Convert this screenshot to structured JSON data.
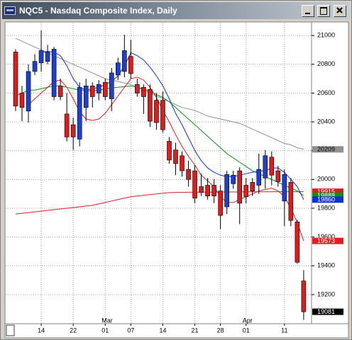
{
  "chart_data": {
    "type": "candlestick",
    "title": "NQC5 - Nasdaq Composite Index, Daily",
    "categories": [
      null,
      null,
      null,
      null,
      "14",
      null,
      null,
      null,
      null,
      "22",
      null,
      null,
      null,
      null,
      "01",
      null,
      null,
      null,
      "07",
      null,
      null,
      null,
      null,
      "14",
      null,
      null,
      null,
      null,
      "21",
      null,
      null,
      null,
      "28",
      null,
      null,
      null,
      "01",
      null,
      null,
      null,
      null,
      null,
      "11",
      null,
      null,
      null
    ],
    "months": [
      null,
      null,
      null,
      null,
      null,
      null,
      null,
      null,
      null,
      null,
      null,
      null,
      null,
      null,
      "Mar",
      null,
      null,
      null,
      null,
      null,
      null,
      null,
      null,
      null,
      null,
      null,
      null,
      null,
      null,
      null,
      null,
      null,
      null,
      null,
      null,
      null,
      "Apr",
      null,
      null,
      null,
      null,
      null,
      null,
      null,
      null,
      null
    ],
    "ylim": [
      18998,
      21094
    ],
    "yticks": [
      19200,
      19400,
      19600,
      19800,
      20000,
      20200,
      20400,
      20600,
      20800,
      21000
    ],
    "grid": true,
    "up_color": "#2040c8",
    "down_color": "#d42020",
    "open": [
      20885,
      20600,
      20475,
      20750,
      20810,
      20820,
      20575,
      20650,
      20455,
      20380,
      20280,
      20500,
      20650,
      20600,
      20675,
      20560,
      20725,
      20750,
      20855,
      20660,
      20640,
      20625,
      20550,
      20550,
      20265,
      20205,
      20165,
      20070,
      20060,
      19950,
      19960,
      19960,
      19920,
      19810,
      19970,
      20060,
      19960,
      19980,
      19960,
      20010,
      20155,
      20060,
      19850,
      19980,
      19705,
      19295
    ],
    "high": [
      20905,
      20650,
      20800,
      20870,
      21035,
      20935,
      20920,
      20700,
      20600,
      20430,
      20675,
      20700,
      20675,
      20690,
      20700,
      20775,
      20845,
      21005,
      20970,
      20700,
      20660,
      20660,
      20600,
      20610,
      20295,
      20255,
      20195,
      20130,
      20100,
      20040,
      20010,
      20000,
      19960,
      20060,
      20060,
      20085,
      20010,
      20010,
      20180,
      20205,
      20195,
      20095,
      20070,
      20010,
      19720,
      19370
    ],
    "low": [
      20475,
      20405,
      20395,
      20725,
      20750,
      20800,
      20550,
      20550,
      20265,
      20205,
      20230,
      20405,
      20500,
      20550,
      20550,
      20475,
      20690,
      20710,
      20700,
      20575,
      20455,
      20365,
      20345,
      20325,
      20110,
      20030,
      20020,
      19950,
      19835,
      19885,
      19860,
      19835,
      19655,
      19760,
      19935,
      19690,
      19835,
      19885,
      19900,
      19935,
      19960,
      19950,
      19675,
      19675,
      19415,
      19025
    ],
    "close": [
      20510,
      20500,
      20750,
      20820,
      20895,
      20885,
      20905,
      20575,
      20295,
      20295,
      20640,
      20650,
      20575,
      20660,
      20575,
      20740,
      20810,
      20895,
      20735,
      20600,
      20575,
      20405,
      20395,
      20345,
      20135,
      20110,
      20060,
      20000,
      19870,
      19910,
      19885,
      19885,
      19750,
      20035,
      20030,
      19835,
      19880,
      19920,
      20070,
      20165,
      20030,
      19985,
      20035,
      19715,
      19425,
      19081
    ],
    "series": [
      {
        "color": "#909090",
        "values": [
          20980,
          20960,
          20940,
          20920,
          20900,
          20880,
          20860,
          20840,
          20820,
          20800,
          20780,
          20760,
          20740,
          20720,
          20700,
          20690,
          20680,
          20670,
          20660,
          20640,
          20620,
          20600,
          20580,
          20560,
          20540,
          20520,
          20500,
          20490,
          20480,
          20460,
          20440,
          20430,
          20420,
          20410,
          20400,
          20390,
          20370,
          20350,
          20330,
          20310,
          20290,
          20270,
          20250,
          20240,
          20220,
          20209
        ]
      },
      {
        "color": "#d42020",
        "values": [
          19760,
          19765,
          19770,
          19775,
          19780,
          19785,
          19790,
          19795,
          19800,
          19805,
          19810,
          19815,
          19820,
          19830,
          19840,
          19850,
          19860,
          19870,
          19880,
          19885,
          19890,
          19895,
          19900,
          19905,
          19908,
          19910,
          19910,
          19911,
          19911,
          19912,
          19912,
          19912,
          19913,
          19913,
          19913,
          19913,
          19914,
          19914,
          19914,
          19914,
          19914,
          19915,
          19915,
          19915,
          19915,
          19915
        ]
      },
      {
        "color": "#1a8a1a",
        "values": [
          20580,
          20600,
          20620,
          20620,
          20630,
          20640,
          20650,
          20650,
          20640,
          20630,
          20620,
          20615,
          20615,
          20620,
          20630,
          20635,
          20640,
          20645,
          20650,
          20640,
          20630,
          20610,
          20590,
          20570,
          20540,
          20500,
          20460,
          20420,
          20380,
          20340,
          20300,
          20260,
          20220,
          20180,
          20150,
          20120,
          20090,
          20060,
          20040,
          20020,
          20000,
          19980,
          19960,
          19940,
          19920,
          19888
        ]
      },
      {
        "color": "#1030d0",
        "values": [
          null,
          null,
          null,
          null,
          20880,
          20890,
          20885,
          20860,
          20790,
          20700,
          20640,
          20620,
          20630,
          20640,
          20660,
          20680,
          20720,
          20790,
          20880,
          20860,
          20830,
          20780,
          20720,
          20650,
          20560,
          20460,
          20380,
          20290,
          20200,
          20130,
          20080,
          20050,
          20030,
          20020,
          20020,
          20030,
          20040,
          20050,
          20060,
          20060,
          20080,
          20080,
          20050,
          20000,
          19950,
          19860
        ]
      },
      {
        "color": "#e02020",
        "values": [
          null,
          null,
          20520,
          20560,
          20600,
          20640,
          20680,
          20690,
          20640,
          20560,
          20470,
          20420,
          20410,
          20420,
          20460,
          20520,
          20580,
          20640,
          20700,
          20710,
          20690,
          20640,
          20570,
          20480,
          20400,
          20310,
          20230,
          20160,
          20100,
          20030,
          19990,
          19950,
          19880,
          19840,
          19840,
          19860,
          19880,
          19900,
          19920,
          19930,
          19940,
          19920,
          19880,
          19800,
          19700,
          19573
        ]
      }
    ]
  }
}
